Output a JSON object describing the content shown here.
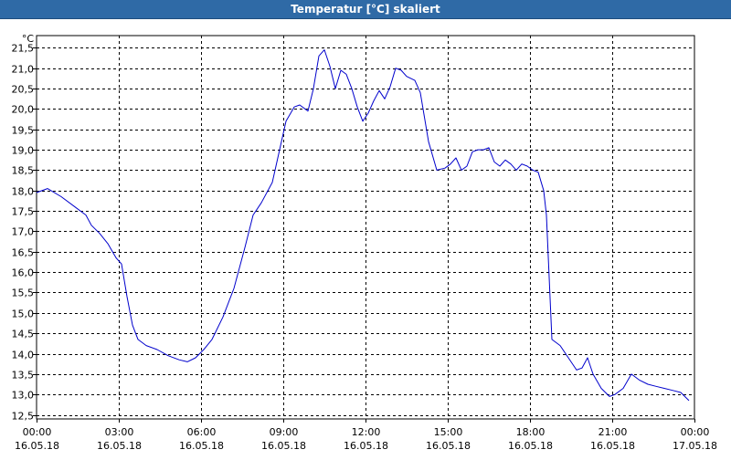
{
  "window": {
    "title": "Temperatur [°C] skaliert"
  },
  "chart_data": {
    "type": "line",
    "title": "Temperatur [°C] skaliert",
    "ylabel": "°C",
    "xlabel": "",
    "ylim": [
      12.4,
      21.8
    ],
    "xlim": [
      0,
      24
    ],
    "grid": true,
    "y_ticks": [
      12.5,
      13.0,
      13.5,
      14.0,
      14.5,
      15.0,
      15.5,
      16.0,
      16.5,
      17.0,
      17.5,
      18.0,
      18.5,
      19.0,
      19.5,
      20.0,
      20.5,
      21.0,
      21.5
    ],
    "y_tick_labels": [
      "12,5",
      "13,0",
      "13,5",
      "14,0",
      "14,5",
      "15,0",
      "15,5",
      "16,0",
      "16,5",
      "17,0",
      "17,5",
      "18,0",
      "18,5",
      "19,0",
      "19,5",
      "20,0",
      "20,5",
      "21,0",
      "21,5"
    ],
    "x_ticks": [
      {
        "hour": 0,
        "time": "00:00",
        "date": "16.05.18"
      },
      {
        "hour": 3,
        "time": "03:00",
        "date": "16.05.18"
      },
      {
        "hour": 6,
        "time": "06:00",
        "date": "16.05.18"
      },
      {
        "hour": 9,
        "time": "09:00",
        "date": "16.05.18"
      },
      {
        "hour": 12,
        "time": "12:00",
        "date": "16.05.18"
      },
      {
        "hour": 15,
        "time": "15:00",
        "date": "16.05.18"
      },
      {
        "hour": 18,
        "time": "18:00",
        "date": "16.05.18"
      },
      {
        "hour": 21,
        "time": "21:00",
        "date": "16.05.18"
      },
      {
        "hour": 24,
        "time": "00:00",
        "date": "17.05.18"
      }
    ],
    "series": [
      {
        "color": "#0000cc",
        "x": [
          0,
          0.4,
          0.9,
          1.4,
          1.8,
          2.0,
          2.3,
          2.6,
          2.9,
          3.1,
          3.3,
          3.5,
          3.7,
          4.0,
          4.4,
          4.8,
          5.2,
          5.5,
          5.8,
          6.1,
          6.4,
          6.8,
          7.2,
          7.6,
          7.9,
          8.2,
          8.6,
          8.9,
          9.1,
          9.4,
          9.6,
          9.9,
          10.1,
          10.3,
          10.5,
          10.7,
          10.9,
          11.1,
          11.3,
          11.5,
          11.7,
          11.9,
          12.1,
          12.3,
          12.5,
          12.7,
          12.9,
          13.1,
          13.3,
          13.5,
          13.8,
          14.0,
          14.3,
          14.6,
          14.9,
          15.1,
          15.3,
          15.5,
          15.7,
          15.9,
          16.1,
          16.3,
          16.5,
          16.7,
          16.9,
          17.1,
          17.3,
          17.5,
          17.7,
          17.9,
          18.1,
          18.3,
          18.5,
          18.6,
          18.8,
          19.1,
          19.4,
          19.7,
          19.9,
          20.1,
          20.3,
          20.6,
          20.9,
          21.1,
          21.4,
          21.7,
          22.0,
          22.3,
          22.6,
          22.9,
          23.2,
          23.5,
          23.8
        ],
        "y": [
          17.95,
          18.05,
          17.85,
          17.6,
          17.4,
          17.15,
          16.95,
          16.7,
          16.35,
          16.2,
          15.4,
          14.7,
          14.35,
          14.2,
          14.1,
          13.95,
          13.85,
          13.8,
          13.9,
          14.1,
          14.35,
          14.9,
          15.6,
          16.6,
          17.4,
          17.7,
          18.2,
          19.1,
          19.7,
          20.05,
          20.1,
          19.95,
          20.5,
          21.3,
          21.45,
          21.05,
          20.5,
          20.95,
          20.85,
          20.5,
          20.05,
          19.7,
          19.9,
          20.2,
          20.45,
          20.25,
          20.55,
          21.0,
          20.95,
          20.8,
          20.7,
          20.4,
          19.2,
          18.5,
          18.55,
          18.65,
          18.8,
          18.5,
          18.6,
          18.95,
          19.0,
          19.0,
          19.05,
          18.7,
          18.6,
          18.75,
          18.65,
          18.5,
          18.65,
          18.6,
          18.5,
          18.45,
          18.0,
          17.4,
          14.35,
          14.2,
          13.9,
          13.6,
          13.65,
          13.9,
          13.5,
          13.15,
          12.95,
          13.0,
          13.15,
          13.5,
          13.35,
          13.25,
          13.2,
          13.15,
          13.1,
          13.05,
          12.85
        ]
      }
    ]
  }
}
